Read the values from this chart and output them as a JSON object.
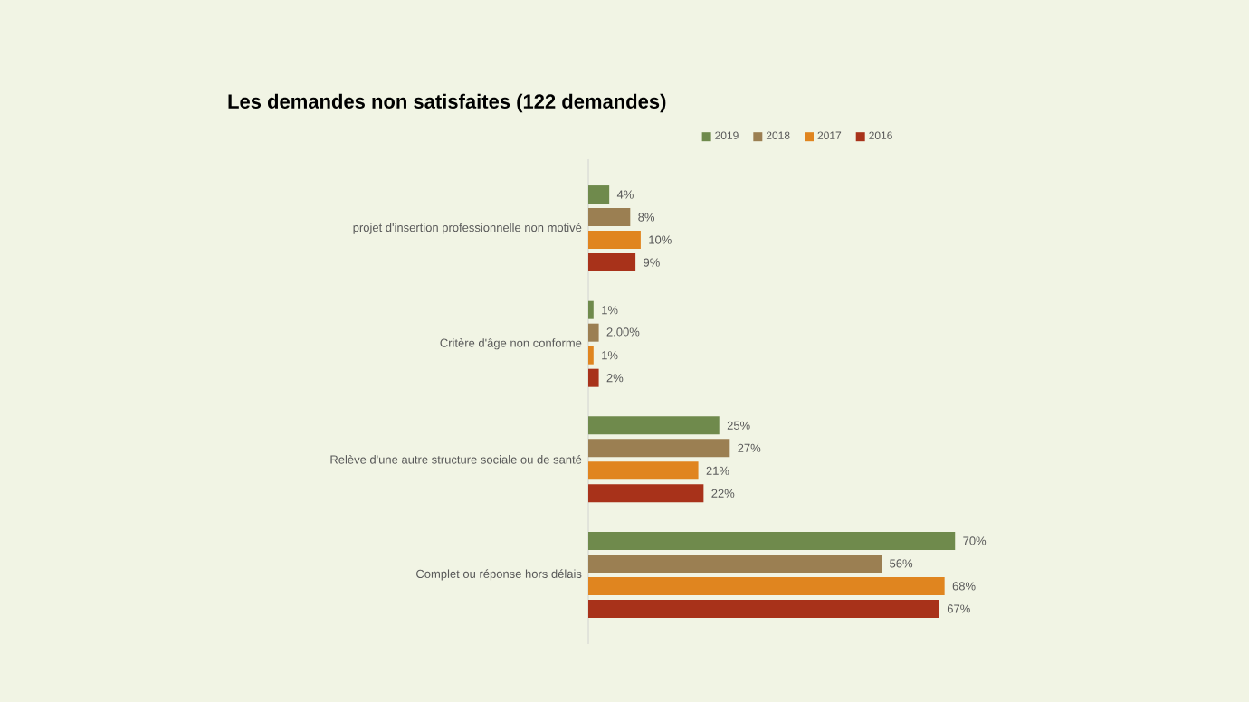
{
  "chart_data": {
    "type": "bar",
    "orientation": "horizontal",
    "title": "**Les demandes non satisfaites (122 demandes)**",
    "legend": "top",
    "categories": [
      "projet d'insertion professionnelle non motivé",
      "Critère d'âge non conforme",
      "Relève d'une autre structure sociale ou de santé",
      "Complet ou réponse hors délais"
    ],
    "series": [
      {
        "name": "2019",
        "color": "#6f8a4c",
        "values": [
          4,
          1,
          25,
          70
        ],
        "value_labels": [
          "4%",
          "1%",
          "25%",
          "70%"
        ]
      },
      {
        "name": "2018",
        "color": "#9b7f52",
        "values": [
          8,
          2,
          27,
          56
        ],
        "value_labels": [
          "8%",
          "2,00%",
          "27%",
          "56%"
        ]
      },
      {
        "name": "2017",
        "color": "#e0851f",
        "values": [
          10,
          1,
          21,
          68
        ],
        "value_labels": [
          "10%",
          "1%",
          "21%",
          "68%"
        ]
      },
      {
        "name": "2016",
        "color": "#a8321a",
        "values": [
          9,
          2,
          22,
          67
        ],
        "value_labels": [
          "9%",
          "2%",
          "22%",
          "67%"
        ]
      }
    ]
  }
}
